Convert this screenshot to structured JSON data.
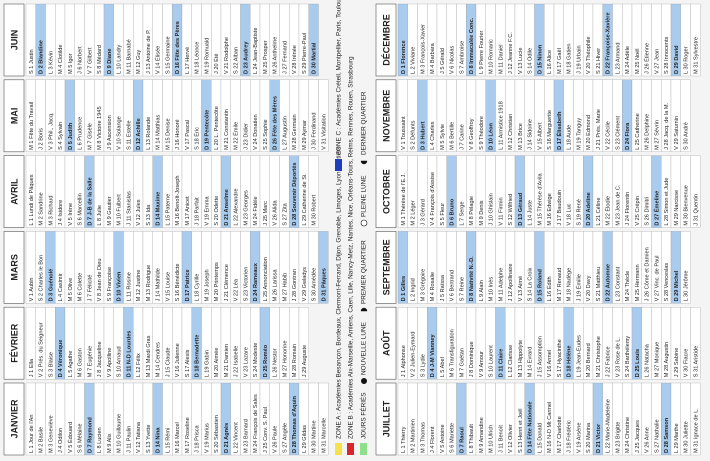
{
  "months": [
    {
      "name": "JANVIER",
      "days": [
        "L 1 Jour de l'An",
        "M 2 Basile",
        "M 3 Geneviève",
        "J 4 Odilon",
        "V 5 Édouard",
        "S 6 Mélaine",
        "D 7 Raymond",
        "L 8 Lucien",
        "M 9 Alix",
        "M 10 Guillaume",
        "J 11 Paulin",
        "V 12 Tatiana",
        "S 13 Yvette",
        "D 14 Nina",
        "L 15 Rémi",
        "M 16 Marcel",
        "M 17 Roseline",
        "J 18 Prisca",
        "V 19 Marius",
        "S 20 Sébastien",
        "D 21 Agnès",
        "L 22 Vincent",
        "M 23 Barnard",
        "M 24 François de Sales",
        "J 25 Conv. S. Paul",
        "V 26 Paule",
        "S 27 Angèle",
        "D 28 Thomas d'Aquin",
        "L 29 Gildas",
        "M 30 Martine",
        "M 31 Marcelle"
      ]
    },
    {
      "name": "FÉVRIER",
      "days": [
        "J 1 Ella",
        "V 2 Prés. du Seigneur",
        "S 3 Blaise",
        "D 4 Véronique",
        "L 5 Agathe",
        "M 6 Gaston",
        "M 7 Eugénie",
        "J 8 Jacqueline",
        "V 9 Apolline",
        "S 10 Arnaud",
        "D 11 N-D Lourdes",
        "L 12 Félix",
        "M 13 Mardi Gras",
        "M 14 Cendres",
        "J 15 Claude",
        "V 16 Julienne",
        "S 17 Alexis",
        "D 18 Bernadette",
        "L 19 Gabin",
        "M 20 Aimée",
        "M 21 Damien",
        "J 22 Isabelle",
        "V 23 Lazare",
        "S 24 Modeste",
        "D 25 Roméo",
        "L 26 Nestor",
        "M 27 Honorine",
        "M 28 Romain",
        "J 29 Auguste"
      ]
    },
    {
      "name": "MARS",
      "days": [
        "V 1 Aubin",
        "S 2 Charles le Bon",
        "D 3 Guénolé",
        "L 4 Casimir",
        "M 5 Olive",
        "M 6 Colette",
        "J 7 Félicité",
        "V 8 Jean de Dieu",
        "S 9 Françoise",
        "D 10 Vivien",
        "L 11 Rosine",
        "M 12 Justine",
        "M 13 Rodrigue",
        "J 14 Mathilde",
        "V 15 Louise",
        "S 16 Bénédicte",
        "D 17 Patrice",
        "L 18 Cyrille",
        "M 19 Joseph",
        "M 20 Printemps",
        "J 21 Clémence",
        "V 22 Léa",
        "S 23 Victorien",
        "D 24 Rameaux",
        "L 25 Annonciation",
        "M 26 Larissa",
        "M 27 Habib",
        "J 28 Gontran",
        "V 29 Gwladys",
        "S 30 Amédée",
        "D 31 Pâques"
      ]
    },
    {
      "name": "AVRIL",
      "days": [
        "L 1 Lundi de Pâques",
        "M 2 Sandrine",
        "M 3 Richard",
        "J 4 Isidore",
        "V 5 Irène",
        "S 6 Marcellin",
        "D 7 J-B de la Salle",
        "L 8 Julie",
        "M 9 Gautier",
        "M 10 Fulbert",
        "J 11 Stanislas",
        "V 12 Jules",
        "S 13 Ida",
        "D 14 Maxime",
        "L 15 Paterne",
        "M 16 Benoît-Joseph",
        "M 17 Anicet",
        "J 18 Parfait",
        "V 19 Emma",
        "S 20 Odette",
        "D 21 Anselme",
        "L 22 Alexandre",
        "M 23 Georges",
        "M 24 Fidèle",
        "J 25 Marc",
        "V 26 Alida",
        "S 27 Zita",
        "D 28 Souvenir Déportés",
        "L 29 Catherine de Si.",
        "M 30 Robert"
      ]
    },
    {
      "name": "MAI",
      "days": [
        "M 1 Fête du Travail",
        "J 2 Boris",
        "V 3 Phil., Jacq.",
        "S 4 Sylvain",
        "D 5 Judith",
        "L 6 Prudence",
        "M 7 Gisèle",
        "M 8 Victoire 1945",
        "J 9 Ascension",
        "V 10 Solange",
        "S 11 Estelle",
        "D 12 Achille",
        "L 13 Rolande",
        "M 14 Matthias",
        "M 15 Denise",
        "J 16 Honoré",
        "V 17 Pascal",
        "S 18 Éric",
        "D 19 Pentecôte",
        "L 20 L. Pentecôte",
        "M 21 Constantin",
        "M 22 Émile",
        "J 23 Didier",
        "V 24 Donatien",
        "S 25 Sophie",
        "D 26 Fête des Mères",
        "L 27 Augustin",
        "M 28 Germain",
        "M 29 Aymar",
        "J 30 Ferdinand",
        "V 31 Visitation"
      ]
    },
    {
      "name": "JUIN",
      "days": [
        "S 1 Justin",
        "D 2 Blandine",
        "L 3 Kévin",
        "M 4 Clotilde",
        "M 5 Igor",
        "J 6 Norbert",
        "V 7 Gilbert",
        "S 8 Médard",
        "D 9 Diane",
        "L 10 Landry",
        "M 11 Barnabé",
        "M 12 Guy",
        "J 13 Antoine de P.",
        "V 14 Élisée",
        "S 15 Germaine",
        "D 16 Fête des Pères",
        "L 17 Hervé",
        "M 18 Léonce",
        "M 19 Romuald",
        "J 20 Été",
        "V 21 Rodolphe",
        "S 22 Alban",
        "D 23 Audrey",
        "L 24 Jean-Baptiste",
        "M 25 Prosper",
        "M 26 Anthelme",
        "J 27 Fernand",
        "V 28 Irénée",
        "S 29 Pierre-Paul",
        "D 30 Martial"
      ]
    },
    {
      "name": "JUILLET",
      "days": [
        "L 1 Thierry",
        "M 2 Martinien",
        "M 3 Thomas",
        "J 4 Florent",
        "V 5 Antoine",
        "S 6 Mariette",
        "D 7 Raoul",
        "L 8 Thibault",
        "M 9 Amandine",
        "M 10 Ulrich",
        "J 11 Benoît",
        "V 12 Olivier",
        "S 13 Henri et Joël",
        "D 14 Fête Nationale",
        "L 15 Donald",
        "M 16 N-D Mt Carmel",
        "M 17 Charlotte",
        "J 18 Frédéric",
        "V 19 Arsène",
        "S 20 Marina",
        "D 21 Victor",
        "L 22 Marie-Madeleine",
        "M 23 Brigitte",
        "M 24 Christine",
        "J 25 Jacques",
        "V 26 Anne",
        "S 27 Nathalie",
        "D 28 Samson",
        "L 29 Marthe",
        "M 30 Juliette",
        "M 31 Ignace de L."
      ]
    },
    {
      "name": "AOÛT",
      "days": [
        "J 1 Alphonse",
        "V 2 Julien-Eymard",
        "S 3 Lydie",
        "D 4 J-M Vianney",
        "L 5 Abel",
        "M 6 Transfiguration",
        "M 7 Gaétan",
        "J 8 Dominique",
        "V 9 Amour",
        "S 10 Laurent",
        "D 11 Claire",
        "L 12 Clarisse",
        "M 13 Hippolyte",
        "M 14 Evrard",
        "J 15 Assomption",
        "V 16 Armel",
        "S 17 Hyacinthe",
        "D 18 Hélène",
        "L 19 Jean-Eudes",
        "M 20 Bernard",
        "M 21 Christophe",
        "J 22 Fabrice",
        "V 23 Rose de L.",
        "S 24 Barthélemy",
        "D 25 Louis",
        "L 26 Natacha",
        "M 27 Monique",
        "M 28 Augustin",
        "J 29 Sabine",
        "V 30 Fiacre",
        "S 31 Aristide"
      ]
    },
    {
      "name": "SEPTEMBRE",
      "days": [
        "D 1 Gilles",
        "L 2 Ingrid",
        "M 3 Grégoire",
        "M 4 Rosalie",
        "J 5 Raïssa",
        "V 6 Bertrand",
        "S 7 Reine",
        "D 8 Nativité N.-D.",
        "L 9 Alain",
        "M 10 Inès",
        "M 11 Adelphe",
        "J 12 Apollinaire",
        "V 13 Aimé",
        "S 14 La Croix",
        "D 15 Roland",
        "L 16 Édith",
        "M 17 Renaud",
        "M 18 Nadège",
        "J 19 Émilie",
        "V 20 Davy",
        "S 21 Matthieu",
        "D 22 Automne",
        "L 23 Constant",
        "M 24 Thècle",
        "M 25 Hermann",
        "J 26 Côme et Damien",
        "V 27 Vinc. de Paul",
        "S 28 Venceslas",
        "D 29 Michel",
        "L 30 Jérôme"
      ]
    },
    {
      "name": "OCTOBRE",
      "days": [
        "M 1 Thérèse de l'E.J.",
        "M 2 Léger",
        "J 3 Gérard",
        "V 4 François d'Assise",
        "S 5 Fleur",
        "D 6 Bruno",
        "L 7 Serge",
        "M 8 Pélagie",
        "M 9 Denis",
        "J 10 Ghislain",
        "V 11 Firmin",
        "S 12 Wilfried",
        "D 13 Géraud",
        "L 14 Juste",
        "M 15 Thérèse d'Avila",
        "M 16 Edwige",
        "J 17 Baudouin",
        "V 18 Luc",
        "S 19 René",
        "D 20 Adeline",
        "L 21 Céline",
        "M 22 Élodie",
        "M 23 Jean de C.",
        "J 24 Florentin",
        "V 25 Crépin",
        "S 26 Dimitri",
        "D 27 Émeline",
        "L 28 Simon et Jude",
        "M 29 Narcisse",
        "M 30 Bienvenue",
        "J 31 Quentin"
      ]
    },
    {
      "name": "NOVEMBRE",
      "days": [
        "V 1 Toussaint",
        "S 2 Défunts",
        "D 3 Hubert",
        "L 4 Charles",
        "M 5 Sylvie",
        "M 6 Bertille",
        "J 7 Carine",
        "V 8 Geoffroy",
        "S 9 Théodore",
        "D 10 Léon",
        "L 11 Armistice 1918",
        "M 12 Christian",
        "M 13 Brice",
        "J 14 Sidoine",
        "V 15 Albert",
        "S 16 Marguerite",
        "D 17 Élisabeth",
        "L 18 Aude",
        "M 19 Tanguy",
        "M 20 Edmond",
        "J 21 Prés. Marie",
        "V 22 Cécile",
        "S 23 Clément",
        "D 24 Flora",
        "L 25 Catherine",
        "M 26 Delphine",
        "M 27 Sévrin",
        "J 28 Jacq. de la M.",
        "V 29 Saturnin",
        "S 30 André"
      ]
    },
    {
      "name": "DÉCEMBRE",
      "days": [
        "D 1 Florence",
        "L 2 Viviane",
        "M 3 François-Xavier",
        "M 4 Barbara",
        "J 5 Gérald",
        "V 6 Nicolas",
        "S 7 Ambroise",
        "D 8 Immaculée Conc.",
        "L 9 Pierre Fourier",
        "M 10 Romaric",
        "M 11 Daniel",
        "J 12 Jeanne F.C.",
        "V 13 Lucie",
        "S 14 Odile",
        "D 15 Ninon",
        "L 16 Alice",
        "M 17 Gaël",
        "M 18 Gatien",
        "J 19 Urbain",
        "V 20 Théophile",
        "S 21 Hiver",
        "D 22 Françoise-Xavière",
        "L 23 Armand",
        "M 24 Adèle",
        "M 25 Noël",
        "J 26 Étienne",
        "V 27 Jean",
        "S 28 Innocents",
        "D 29 David",
        "L 30 Roger",
        "M 31 Sylvestre"
      ]
    }
  ],
  "legend": {
    "zone_a": "ZONE A : Académies Besançon, Bordeaux, Clermont-Ferrand, Dijon, Grenoble, Limoges, Lyon, Poitiers",
    "zone_b": "ZONE B : Académies Aix-Marseille, Amiens, Caen, Lille, Nancy-Metz, Nantes, Nice, Orléans-Tours, Reims, Rennes, Rouen, Strasbourg",
    "zone_c": "ZONE C : Académies Créteil, Montpellier, Paris, Toulouse, Versailles",
    "holidays": "JOURS FÉRIÉS",
    "new_moon": "NOUVELLE LUNE",
    "first_quarter": "PREMIER QUARTIER",
    "full_moon": "PLEINE LUNE",
    "last_quarter": "DERNIER QUARTIER"
  }
}
